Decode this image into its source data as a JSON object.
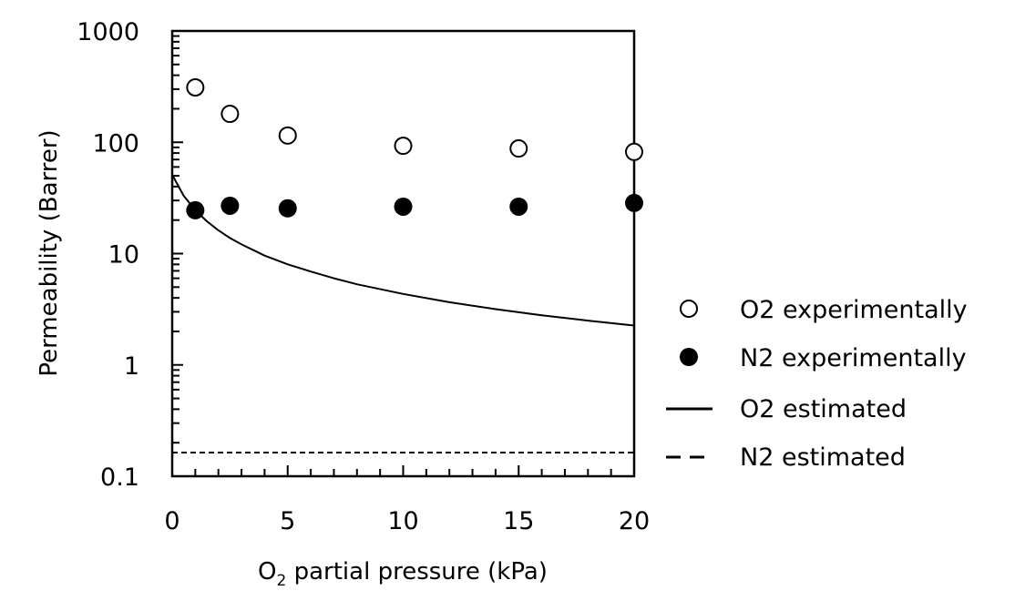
{
  "chart_data": {
    "type": "scatter",
    "title": "",
    "xlabel": {
      "main": "O",
      "sub": "2",
      "rest": " partial pressure (kPa)"
    },
    "ylabel": "Permeability (Barrer)",
    "xlim": [
      0,
      20
    ],
    "ylim": [
      0.1,
      1000
    ],
    "yscale": "log",
    "grid": false,
    "x_ticks": [
      0,
      5,
      10,
      15,
      20
    ],
    "x_tick_labels": [
      "0",
      "5",
      "10",
      "15",
      "20"
    ],
    "x_minor_step": 1,
    "y_ticks": [
      1000,
      100,
      10,
      1,
      0.1
    ],
    "y_tick_labels": [
      "1000",
      "100",
      "10",
      "1",
      "0.1"
    ],
    "legend_position": "right",
    "series": [
      {
        "name": "O2 experimentally",
        "kind": "marker-open",
        "x": [
          1,
          2.5,
          5,
          10,
          15,
          20
        ],
        "y": [
          311,
          180,
          115,
          93,
          88,
          82
        ]
      },
      {
        "name": "N2 experimentally",
        "kind": "marker-filled",
        "x": [
          1,
          2.5,
          5,
          10,
          15,
          20
        ],
        "y": [
          24.5,
          26.9,
          25.5,
          26.4,
          26.4,
          28.5
        ]
      },
      {
        "name": "O2 estimated",
        "kind": "line-solid",
        "x": [
          0,
          0.5,
          1,
          1.5,
          2,
          2.5,
          3,
          4,
          5,
          6,
          7,
          8,
          10,
          12,
          14,
          16,
          18,
          20
        ],
        "y": [
          51,
          33,
          24.6,
          19.5,
          16.2,
          13.8,
          12.1,
          9.6,
          8.0,
          6.9,
          6.0,
          5.3,
          4.34,
          3.66,
          3.17,
          2.79,
          2.5,
          2.26
        ]
      },
      {
        "name": "N2 estimated",
        "kind": "line-dashed",
        "x": [
          0,
          20
        ],
        "y": [
          0.163,
          0.163
        ]
      }
    ],
    "colors": {
      "axis": "#000000",
      "marker": "#000000",
      "fill_open": "#ffffff"
    }
  }
}
